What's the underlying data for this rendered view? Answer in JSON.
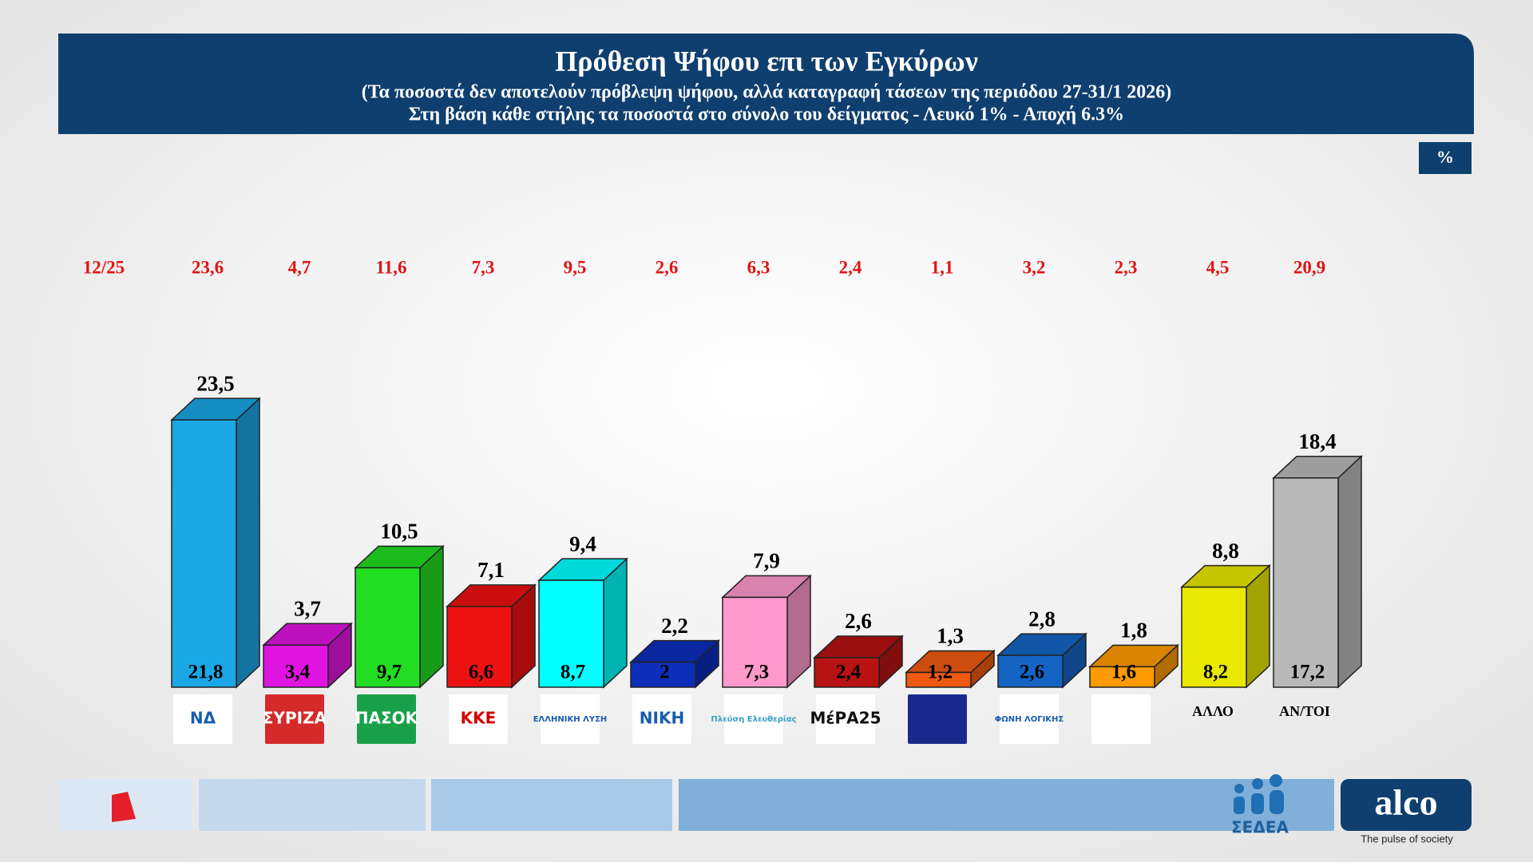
{
  "chart_data": {
    "type": "bar",
    "title": "Πρόθεση Ψήφου επι των Εγκύρων",
    "subtitle": [
      "(Τα ποσοστά δεν αποτελούν πρόβλεψη ψήφου, αλλά καταγραφή τάσεων της περιόδου  27-31/1 2026)",
      "Στη βάση κάθε στήλης τα ποσοστά στο σύνολο του δείγματος - Λευκό 1% - Αποχή 6.3%"
    ],
    "unit_badge": "%",
    "categories": [
      "ΝΔ",
      "ΣΥΡΙΖΑ",
      "ΠΑΣΟΚ",
      "ΚΚΕ",
      "ΕΛΛΗΝΙΚΗ ΛΥΣΗ",
      "ΝΙΚΗ",
      "Πλεύση Ελευθερίας",
      "ΜέΡΑ25",
      null,
      "ΦΩΝΗ ΛΟΓΙΚΗΣ",
      null,
      "ΑΛΛΟ",
      "ΑΝ/ΤΟΙ"
    ],
    "colors": [
      "#1aa7e6",
      "#e014e0",
      "#22dd22",
      "#ee1111",
      "#00ffff",
      "#0c2ebb",
      "#ff99cc",
      "#b81212",
      "#f05a10",
      "#1464c4",
      "#ff9a00",
      "#e8e800",
      "#b9b9b9"
    ],
    "values": [
      23.5,
      3.7,
      10.5,
      7.1,
      9.4,
      2.2,
      7.9,
      2.6,
      1.3,
      2.8,
      1.8,
      8.8,
      18.4
    ],
    "value_labels": [
      "23,5",
      "3,7",
      "10,5",
      "7,1",
      "9,4",
      "2,2",
      "7,9",
      "2,6",
      "1,3",
      "2,8",
      "1,8",
      "8,8",
      "18,4"
    ],
    "sample_values": [
      21.8,
      3.4,
      9.7,
      6.6,
      8.7,
      2,
      7.3,
      2.4,
      1.2,
      2.6,
      1.6,
      8.2,
      17.2
    ],
    "sample_value_labels": [
      "21,8",
      "3,4",
      "9,7",
      "6,6",
      "8,7",
      "2",
      "7,3",
      "2,4",
      "1,2",
      "2,6",
      "1,6",
      "8,2",
      "17,2"
    ],
    "previous": {
      "label": "12/25",
      "color": "#e01414",
      "values": [
        23.6,
        4.7,
        11.6,
        7.3,
        9.5,
        2.6,
        6.3,
        2.4,
        1.1,
        3.2,
        2.3,
        4.5,
        20.9
      ],
      "value_labels": [
        "23,6",
        "4,7",
        "11,6",
        "7,3",
        "9,5",
        "2,6",
        "6,3",
        "2,4",
        "1,1",
        "3,2",
        "2,3",
        "4,5",
        "20,9"
      ]
    }
  },
  "footer": {
    "partner": "ΣΕΔΕΑ",
    "brand": "alco",
    "tagline": "The pulse of society"
  }
}
